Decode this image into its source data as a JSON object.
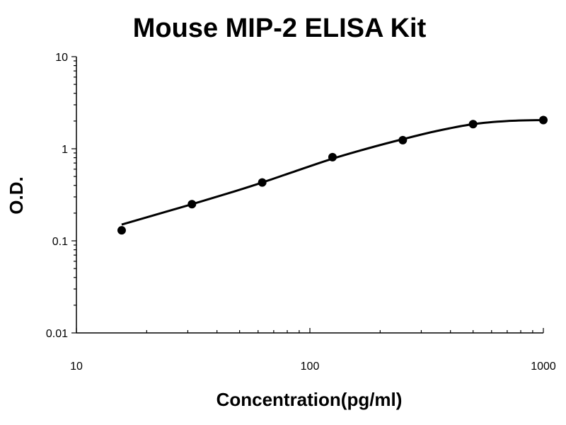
{
  "chart_data": {
    "type": "scatter",
    "title": "Mouse MIP-2 ELISA Kit",
    "xlabel": "Concentration(pg/ml)",
    "ylabel": "O.D.",
    "xscale": "log",
    "yscale": "log",
    "xlim": [
      10,
      1000
    ],
    "ylim": [
      0.01,
      10
    ],
    "xticks": [
      "10",
      "100",
      "1000"
    ],
    "yticks": [
      "0.01",
      "0.1",
      "1",
      "10"
    ],
    "grid": false,
    "series": [
      {
        "x": [
          15.625,
          31.25,
          62.5,
          125,
          250,
          500,
          1000
        ],
        "y": [
          0.13,
          0.25,
          0.43,
          0.81,
          1.24,
          1.85,
          2.05
        ]
      }
    ],
    "fit_curve": {
      "x": [
        15.625,
        20,
        31.25,
        45,
        62.5,
        90,
        125,
        180,
        250,
        350,
        500,
        700,
        1000
      ],
      "y": [
        0.15,
        0.18,
        0.25,
        0.33,
        0.43,
        0.59,
        0.78,
        1.02,
        1.27,
        1.56,
        1.85,
        2.0,
        2.05
      ]
    }
  }
}
